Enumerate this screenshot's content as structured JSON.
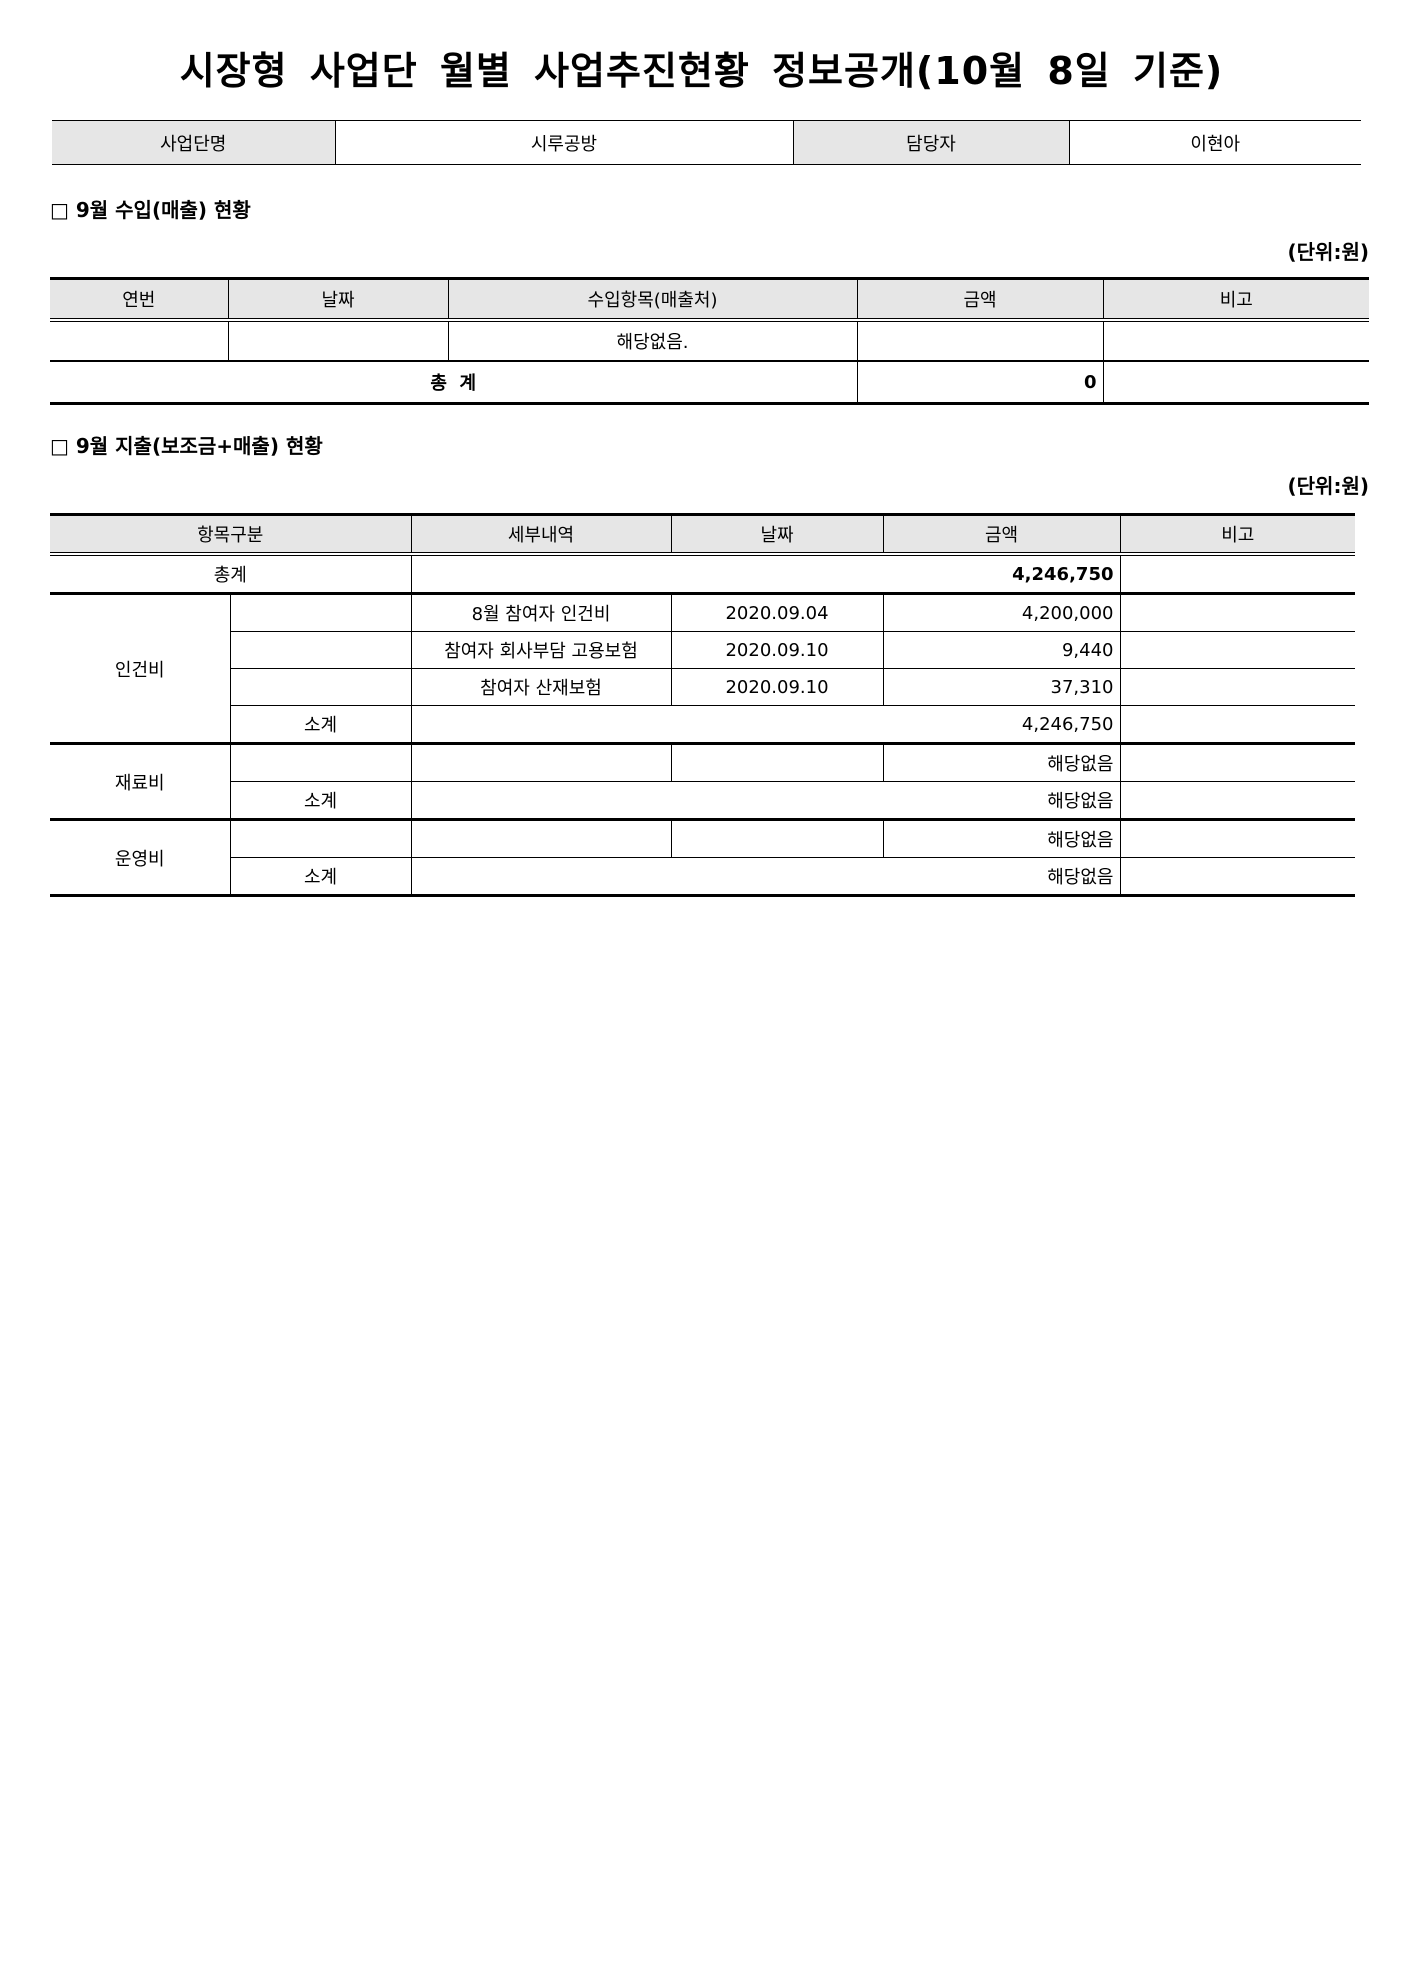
{
  "title": "시장형 사업단 월별 사업추진현황 정보공개(10월 8일 기준)",
  "info": {
    "name_label": "사업단명",
    "name_value": "시루공방",
    "manager_label": "담당자",
    "manager_value": "이현아"
  },
  "income": {
    "heading": "□ 9월 수입(매출) 현황",
    "unit": "(단위:원)",
    "headers": [
      "연번",
      "날짜",
      "수입항목(매출처)",
      "금액",
      "비고"
    ],
    "rows": [
      {
        "no": "",
        "date": "",
        "item": "해당없음.",
        "amount": "",
        "note": ""
      }
    ],
    "total_label": "총  계",
    "total_amount": "0"
  },
  "expense": {
    "heading": "□ 9월 지출(보조금+매출) 현황",
    "unit": "(단위:원)",
    "headers": [
      "항목구분",
      "세부내역",
      "날짜",
      "금액",
      "비고"
    ],
    "total_label": "총계",
    "total_amount": "4,246,750",
    "subtotal_label": "소계",
    "groups": [
      {
        "name": "인건비",
        "rows": [
          {
            "detail": "8월 참여자 인건비",
            "date": "2020.09.04",
            "amount": "4,200,000"
          },
          {
            "detail": "참여자 회사부담 고용보험",
            "date": "2020.09.10",
            "amount": "9,440"
          },
          {
            "detail": "참여자 산재보험",
            "date": "2020.09.10",
            "amount": "37,310"
          }
        ],
        "subtotal": "4,246,750"
      },
      {
        "name": "재료비",
        "rows": [
          {
            "detail": "",
            "date": "",
            "amount": "해당없음"
          }
        ],
        "subtotal": "해당없음"
      },
      {
        "name": "운영비",
        "rows": [
          {
            "detail": "",
            "date": "",
            "amount": "해당없음"
          }
        ],
        "subtotal": "해당없음"
      }
    ]
  }
}
